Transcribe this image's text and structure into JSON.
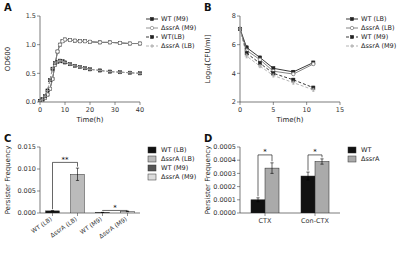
{
  "chart_data": [
    {
      "type": "line",
      "title": "A",
      "x_label": "Time(h)",
      "y_label": "OD600",
      "xlim": [
        0,
        40
      ],
      "ylim": [
        0.0,
        1.5
      ],
      "xticks": [
        0,
        10,
        20,
        30,
        40
      ],
      "yticks": [
        {
          "value": 0.0,
          "label": "0.0"
        },
        0.5,
        {
          "value": 1.0,
          "label": "1.0"
        },
        1.5
      ],
      "legend": "right",
      "series": [
        {
          "name": "WT (M9)",
          "color": "#222222",
          "marker": "square",
          "line_style": "solid",
          "x": [
            0,
            1,
            2,
            3,
            4,
            5,
            6,
            7,
            8,
            9,
            10,
            12,
            14,
            16,
            18,
            20,
            24,
            28,
            32,
            36,
            40
          ],
          "values": [
            0.02,
            0.04,
            0.07,
            0.13,
            0.23,
            0.4,
            0.65,
            0.88,
            1.0,
            1.06,
            1.09,
            1.08,
            1.07,
            1.06,
            1.06,
            1.05,
            1.04,
            1.04,
            1.03,
            1.02,
            1.02
          ]
        },
        {
          "name": "ΔssrA (M9)",
          "color": "#888888",
          "marker": "open-circle",
          "line_style": "solid",
          "x": [
            0,
            1,
            2,
            3,
            4,
            5,
            6,
            7,
            8,
            9,
            10,
            12,
            14,
            16,
            18,
            20,
            24,
            28,
            32,
            36,
            40
          ],
          "values": [
            0.02,
            0.04,
            0.07,
            0.13,
            0.23,
            0.4,
            0.65,
            0.88,
            1.0,
            1.06,
            1.09,
            1.08,
            1.07,
            1.06,
            1.06,
            1.05,
            1.04,
            1.04,
            1.03,
            1.02,
            1.02
          ]
        },
        {
          "name": "WT(LB)",
          "color": "#222222",
          "marker": "square",
          "line_style": "dashed",
          "x": [
            0,
            1,
            2,
            3,
            4,
            5,
            6,
            7,
            8,
            9,
            10,
            12,
            14,
            16,
            18,
            20,
            24,
            28,
            32,
            36,
            40
          ],
          "values": [
            0.02,
            0.05,
            0.1,
            0.2,
            0.38,
            0.58,
            0.68,
            0.7,
            0.72,
            0.71,
            0.69,
            0.66,
            0.63,
            0.61,
            0.59,
            0.57,
            0.55,
            0.53,
            0.52,
            0.51,
            0.5
          ]
        },
        {
          "name": "ΔssrA (LB)",
          "color": "#aaaaaa",
          "marker": "plus",
          "line_style": "dashed",
          "x": [
            0,
            1,
            2,
            3,
            4,
            5,
            6,
            7,
            8,
            9,
            10,
            12,
            14,
            16,
            18,
            20,
            24,
            28,
            32,
            36,
            40
          ],
          "values": [
            0.02,
            0.05,
            0.1,
            0.2,
            0.38,
            0.58,
            0.68,
            0.7,
            0.72,
            0.71,
            0.69,
            0.66,
            0.63,
            0.61,
            0.59,
            0.57,
            0.55,
            0.53,
            0.52,
            0.51,
            0.5
          ]
        }
      ]
    },
    {
      "type": "line",
      "title": "B",
      "x_label": "Time(h)",
      "y_label": "Log₁₀[CFU/ml]",
      "xlim": [
        0,
        15
      ],
      "ylim": [
        2,
        8
      ],
      "xticks": [
        0,
        5,
        10,
        15
      ],
      "yticks": [
        2,
        4,
        6,
        8
      ],
      "legend": "right",
      "series": [
        {
          "name": "WT (LB)",
          "color": "#222222",
          "marker": "square",
          "line_style": "solid",
          "x": [
            0,
            1,
            3,
            5,
            8,
            11
          ],
          "values": [
            7.1,
            5.8,
            5.1,
            4.35,
            4.1,
            4.75
          ],
          "errors": [
            0.1,
            0.12,
            0.1,
            0.1,
            0.1,
            0.1
          ]
        },
        {
          "name": "ΔssrA (LB)",
          "color": "#777777",
          "marker": "open-circle",
          "line_style": "solid",
          "x": [
            0,
            1,
            3,
            5,
            8,
            11
          ],
          "values": [
            7.1,
            5.6,
            4.95,
            4.15,
            3.95,
            4.65
          ],
          "errors": [
            0.1,
            0.12,
            0.1,
            0.1,
            0.1,
            0.1
          ]
        },
        {
          "name": "WT (M9)",
          "color": "#222222",
          "marker": "square",
          "line_style": "dashed",
          "x": [
            0,
            1,
            3,
            5,
            8,
            11
          ],
          "values": [
            7.1,
            5.4,
            4.7,
            4.0,
            3.55,
            3.0
          ],
          "errors": [
            0.1,
            0.12,
            0.1,
            0.1,
            0.1,
            0.1
          ]
        },
        {
          "name": "ΔssrA (M9)",
          "color": "#aaaaaa",
          "marker": "plus",
          "line_style": "dashed",
          "x": [
            0,
            1,
            3,
            5,
            8,
            11
          ],
          "values": [
            7.1,
            5.2,
            4.5,
            3.85,
            3.35,
            2.85
          ],
          "errors": [
            0.1,
            0.12,
            0.1,
            0.1,
            0.1,
            0.1
          ]
        }
      ]
    },
    {
      "type": "bar",
      "title": "C",
      "y_label": "Persister Frequency",
      "categories": [
        "WT (LB)",
        "ΔssrA (LB)",
        "WT (M9)",
        "ΔssrA (M9)"
      ],
      "values": [
        0.00048,
        0.0088,
        0.00013,
        0.00036
      ],
      "errors": [
        3e-05,
        0.0014,
        1.5e-05,
        6e-05
      ],
      "colors": [
        "#111111",
        "#bbbbbb",
        "#555555",
        "#dddddd"
      ],
      "ylim": [
        0,
        0.015
      ],
      "yticks": [
        {
          "value": 0,
          "label": "0.000"
        },
        0.005,
        {
          "value": 0.01,
          "label": "0.010"
        },
        0.015
      ],
      "legend": "right",
      "annotations": [
        {
          "x1": 0,
          "x2": 1,
          "y": 0.0115,
          "text": "**"
        },
        {
          "x1": 2,
          "x2": 3,
          "y": 0.00058,
          "text": "*"
        }
      ]
    },
    {
      "type": "bar",
      "title": "D",
      "y_label": "Persister Frequency",
      "categories": [
        "CTX",
        "Con-CTX"
      ],
      "series": [
        {
          "name": "WT",
          "color": "#111111",
          "values": [
            0.0001,
            0.00028
          ],
          "errors": [
            1.5e-05,
            3e-05
          ]
        },
        {
          "name": "ΔssrA",
          "color": "#aaaaaa",
          "values": [
            0.00034,
            0.00039
          ],
          "errors": [
            4e-05,
            2e-05
          ]
        }
      ],
      "ylim": [
        0,
        0.0005
      ],
      "yticks": [
        {
          "value": 0,
          "label": "0.0000"
        },
        0.0001,
        0.0002,
        0.0003,
        0.0004,
        0.0005
      ],
      "legend": "right",
      "annotations": [
        {
          "category": 0,
          "y": 0.00044,
          "text": "*"
        },
        {
          "category": 1,
          "y": 0.00044,
          "text": "*"
        }
      ]
    }
  ]
}
